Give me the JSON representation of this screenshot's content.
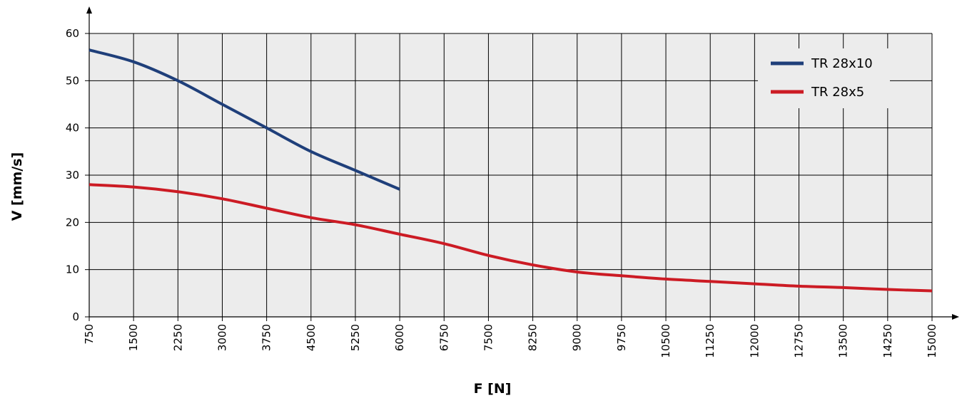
{
  "chart_data": {
    "type": "line",
    "xlabel": "F [N]",
    "ylabel": "V [mm/s]",
    "xticks": [
      750,
      1500,
      2250,
      3000,
      3750,
      4500,
      5250,
      6000,
      6750,
      7500,
      8250,
      9000,
      9750,
      10500,
      11250,
      12000,
      12750,
      13500,
      14250,
      15000
    ],
    "yticks": [
      0,
      10,
      20,
      30,
      40,
      50,
      60
    ],
    "xlim": [
      750,
      15000
    ],
    "ylim": [
      0,
      60
    ],
    "grid": true,
    "legend_position": "top-right",
    "series": [
      {
        "name": "TR 28x10",
        "color": "#1f3f7a",
        "x": [
          750,
          1500,
          2250,
          3000,
          3750,
          4500,
          5250,
          6000
        ],
        "y": [
          56.5,
          54,
          50,
          45,
          40,
          35,
          31,
          27
        ]
      },
      {
        "name": "TR 28x5",
        "color": "#cc1b24",
        "x": [
          750,
          1500,
          2250,
          3000,
          3750,
          4500,
          5250,
          6000,
          6750,
          7500,
          8250,
          9000,
          9750,
          10500,
          11250,
          12000,
          12750,
          13500,
          14250,
          15000
        ],
        "y": [
          28,
          27.5,
          26.5,
          25,
          23,
          21,
          19.5,
          17.5,
          15.5,
          13,
          11,
          9.5,
          8.7,
          8,
          7.5,
          7,
          6.5,
          6.2,
          5.8,
          5.5
        ]
      }
    ]
  }
}
